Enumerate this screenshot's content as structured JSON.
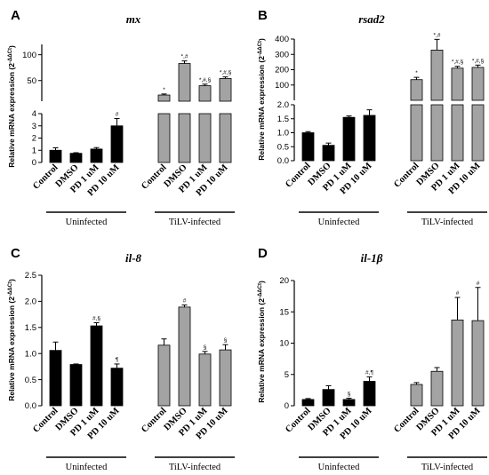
{
  "figure": {
    "groups": [
      "Uninfected",
      "TiLV-infected"
    ],
    "ylabel": "Relative mRNA expression (2",
    "ylabel_sup": "-ΔΔCt",
    "ylabel_close": ")",
    "colors": {
      "uninfected": "#000000",
      "infected": "#a3a3a3"
    }
  },
  "chart_data": [
    {
      "type": "bar",
      "panel": "A",
      "title": "mx",
      "categories": [
        "Control",
        "DMSO",
        "PD 1 uM",
        "PD 10 uM",
        "Control",
        "DMSO",
        "PD 1 uM",
        "PD 10 uM"
      ],
      "values": [
        1.0,
        0.75,
        1.1,
        3.0,
        22,
        83,
        40,
        54
      ],
      "errors": [
        0.2,
        0.05,
        0.12,
        0.6,
        2,
        5,
        3,
        3
      ],
      "annotations": [
        "",
        "",
        "",
        "#",
        "*",
        "*,#",
        "*,#,§",
        "*,#,§"
      ],
      "y_axis_break": {
        "lower_range": [
          0,
          4
        ],
        "upper_range": [
          10,
          120
        ]
      },
      "y_ticks_lower": [
        "0",
        "1",
        "2",
        "3",
        "4"
      ],
      "y_ticks_upper": [
        "50",
        "100"
      ],
      "y_top_tick": "4"
    },
    {
      "type": "bar",
      "panel": "B",
      "title": "rsad2",
      "categories": [
        "Control",
        "DMSO",
        "PD 1 uM",
        "PD 10 uM",
        "Control",
        "DMSO",
        "PD 1 uM",
        "PD 10 uM"
      ],
      "values": [
        1.0,
        0.55,
        1.55,
        1.62,
        135,
        328,
        210,
        215
      ],
      "errors": [
        0.04,
        0.08,
        0.05,
        0.2,
        15,
        70,
        12,
        15
      ],
      "annotations": [
        "",
        "",
        "",
        "",
        "*",
        "*,#",
        "*,#,§",
        "*,#,§"
      ],
      "y_axis_break": {
        "lower_range": [
          0,
          2
        ],
        "upper_range": [
          0,
          400
        ]
      },
      "y_ticks_lower": [
        "0.0",
        "0.5",
        "1.0",
        "1.5",
        "2.0"
      ],
      "y_ticks_upper": [
        "100",
        "200",
        "300",
        "400"
      ]
    },
    {
      "type": "bar",
      "panel": "C",
      "title": "il-8",
      "categories": [
        "Control",
        "DMSO",
        "PD 1 uM",
        "PD 10 uM",
        "Control",
        "DMSO",
        "PD 1 uM",
        "PD 10 uM"
      ],
      "values": [
        1.06,
        0.79,
        1.53,
        0.72,
        1.16,
        1.89,
        0.99,
        1.07
      ],
      "errors": [
        0.16,
        0.01,
        0.06,
        0.08,
        0.12,
        0.04,
        0.05,
        0.1
      ],
      "annotations": [
        "",
        "",
        "#,§",
        "¶",
        "",
        "#",
        "§",
        "§"
      ],
      "ylim": [
        0,
        2.5
      ],
      "y_ticks": [
        "0.0",
        "0.5",
        "1.0",
        "1.5",
        "2.0",
        "2.5"
      ]
    },
    {
      "type": "bar",
      "panel": "D",
      "title": "il-1β",
      "categories": [
        "Control",
        "DMSO",
        "PD 1 uM",
        "PD 10 uM",
        "Control",
        "DMSO",
        "PD 1 uM",
        "PD 10 uM"
      ],
      "values": [
        1.0,
        2.6,
        1.0,
        3.9,
        3.4,
        5.5,
        13.7,
        13.6
      ],
      "errors": [
        0.15,
        0.6,
        0.2,
        0.7,
        0.3,
        0.6,
        3.6,
        5.3
      ],
      "annotations": [
        "",
        "",
        "§",
        "#,¶",
        "",
        "",
        "#",
        "#"
      ],
      "ylim": [
        0,
        20
      ],
      "y_ticks": [
        "0",
        "5",
        "10",
        "15",
        "20"
      ]
    }
  ]
}
